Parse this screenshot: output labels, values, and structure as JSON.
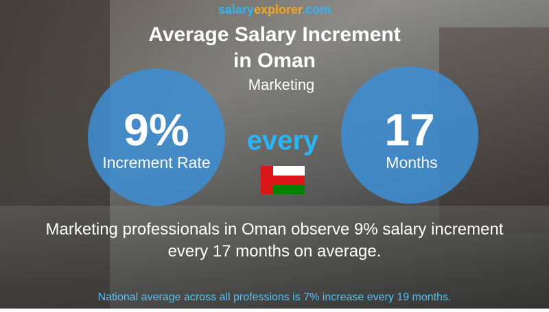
{
  "logo": {
    "parts": [
      "salary",
      "explorer",
      ".com"
    ]
  },
  "header": {
    "title_lines": [
      "Average Salary Increment",
      "in Oman"
    ],
    "subtitle": "Marketing"
  },
  "left_circle": {
    "value": "9%",
    "label": "Increment Rate"
  },
  "connector": "every",
  "right_circle": {
    "value": "17",
    "label": "Months"
  },
  "description_lines": [
    "Marketing professionals in Oman observe 9% salary increment",
    "every 17 months on average."
  ],
  "footnote": "National average across all professions is 7% increase every 19 months."
}
